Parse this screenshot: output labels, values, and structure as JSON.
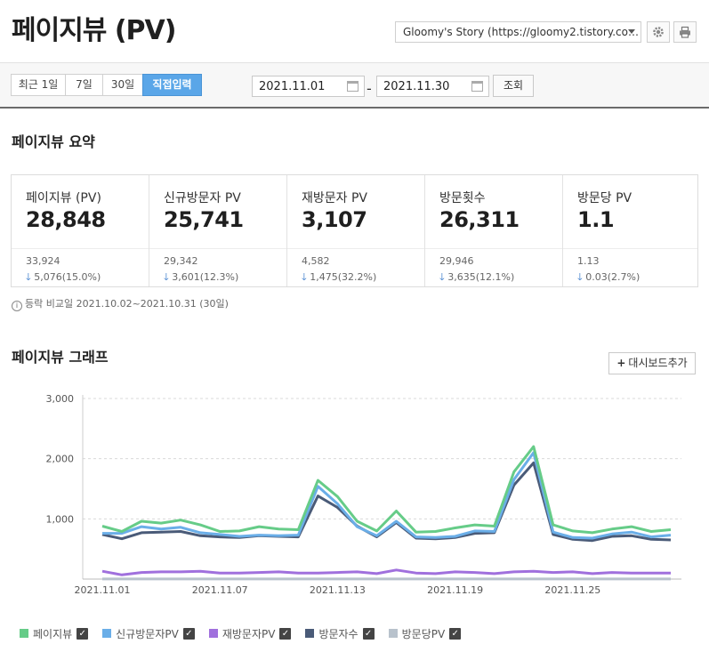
{
  "header": {
    "title": "페이지뷰 (PV)",
    "blog_select": "Gloomy's Story (https://gloomy2.tistory.co…",
    "settings_icon": "gear-icon",
    "print_icon": "printer-icon"
  },
  "period": {
    "options": [
      "최근 1일",
      "7일",
      "30일",
      "직접입력"
    ],
    "active": "직접입력",
    "start_date": "2021.11.01",
    "end_date": "2021.11.30",
    "separator": "-",
    "query_label": "조회"
  },
  "summary": {
    "title": "페이지뷰 요약",
    "cards": [
      {
        "label": "페이지뷰 (PV)",
        "value": "28,848",
        "prev": "33,924",
        "delta": "5,076(15.0%)"
      },
      {
        "label": "신규방문자 PV",
        "value": "25,741",
        "prev": "29,342",
        "delta": "3,601(12.3%)"
      },
      {
        "label": "재방문자 PV",
        "value": "3,107",
        "prev": "4,582",
        "delta": "1,475(32.2%)"
      },
      {
        "label": "방문횟수",
        "value": "26,311",
        "prev": "29,946",
        "delta": "3,635(12.1%)"
      },
      {
        "label": "방문당 PV",
        "value": "1.1",
        "prev": "1.13",
        "delta": "0.03(2.7%)"
      }
    ],
    "compare_note": "등락 비교일  2021.10.02~2021.10.31 (30일)"
  },
  "graph": {
    "title": "페이지뷰 그래프",
    "add_button": "대시보드추가"
  },
  "colors": {
    "pv": "#66cc88",
    "new": "#6aaee8",
    "revisit": "#a070dd",
    "visits": "#4a5b78",
    "per_visit": "#b8c2cc",
    "accent": "#5aa6e8"
  },
  "chart_data": {
    "type": "line",
    "x": [
      "2021.11.01",
      "2021.11.02",
      "2021.11.03",
      "2021.11.04",
      "2021.11.05",
      "2021.11.06",
      "2021.11.07",
      "2021.11.08",
      "2021.11.09",
      "2021.11.10",
      "2021.11.11",
      "2021.11.12",
      "2021.11.13",
      "2021.11.14",
      "2021.11.15",
      "2021.11.16",
      "2021.11.17",
      "2021.11.18",
      "2021.11.19",
      "2021.11.20",
      "2021.11.21",
      "2021.11.22",
      "2021.11.23",
      "2021.11.24",
      "2021.11.25",
      "2021.11.26",
      "2021.11.27",
      "2021.11.28",
      "2021.11.29",
      "2021.11.30"
    ],
    "x_tick_labels": [
      "2021.11.01",
      "2021.11.07",
      "2021.11.13",
      "2021.11.19",
      "2021.11.25"
    ],
    "x_tick_indices": [
      0,
      6,
      12,
      18,
      24
    ],
    "y_ticks": [
      "3,000",
      "2,000",
      "1,000"
    ],
    "y_tick_values": [
      3000,
      2000,
      1000
    ],
    "ylim": [
      0,
      3000
    ],
    "series": [
      {
        "name": "페이지뷰",
        "key": "pv",
        "values": [
          880,
          790,
          960,
          930,
          980,
          900,
          790,
          800,
          870,
          830,
          820,
          1640,
          1370,
          960,
          800,
          1130,
          780,
          790,
          850,
          900,
          880,
          1780,
          2200,
          900,
          800,
          770,
          830,
          870,
          790,
          820
        ]
      },
      {
        "name": "신규방문자PV",
        "key": "new",
        "values": [
          760,
          760,
          870,
          830,
          860,
          770,
          740,
          710,
          730,
          720,
          730,
          1540,
          1250,
          870,
          720,
          960,
          700,
          690,
          710,
          800,
          790,
          1650,
          2100,
          780,
          690,
          680,
          750,
          780,
          700,
          730
        ]
      },
      {
        "name": "재방문자PV",
        "key": "revisit",
        "values": [
          130,
          70,
          110,
          120,
          120,
          130,
          100,
          100,
          110,
          120,
          100,
          100,
          110,
          120,
          90,
          150,
          100,
          90,
          120,
          110,
          90,
          120,
          130,
          110,
          120,
          90,
          110,
          100,
          100,
          100
        ]
      },
      {
        "name": "방문자수",
        "key": "visits",
        "values": [
          740,
          670,
          770,
          780,
          790,
          720,
          700,
          690,
          720,
          710,
          700,
          1380,
          1190,
          880,
          700,
          940,
          680,
          670,
          690,
          760,
          770,
          1560,
          1930,
          740,
          660,
          640,
          710,
          720,
          660,
          650
        ]
      },
      {
        "name": "방문당PV",
        "key": "per_visit",
        "values": [
          1.2,
          1.2,
          1.2,
          1.2,
          1.2,
          1.3,
          1.1,
          1.2,
          1.2,
          1.2,
          1.2,
          1.2,
          1.2,
          1.1,
          1.1,
          1.2,
          1.1,
          1.2,
          1.2,
          1.2,
          1.1,
          1.1,
          1.1,
          1.2,
          1.2,
          1.2,
          1.2,
          1.2,
          1.2,
          1.3
        ]
      }
    ],
    "legend": [
      {
        "label": "페이지뷰",
        "key": "pv"
      },
      {
        "label": "신규방문자PV",
        "key": "new"
      },
      {
        "label": "재방문자PV",
        "key": "revisit"
      },
      {
        "label": "방문자수",
        "key": "visits"
      },
      {
        "label": "방문당PV",
        "key": "per_visit"
      }
    ],
    "legend_placement": "bottom-left",
    "grid": true
  }
}
